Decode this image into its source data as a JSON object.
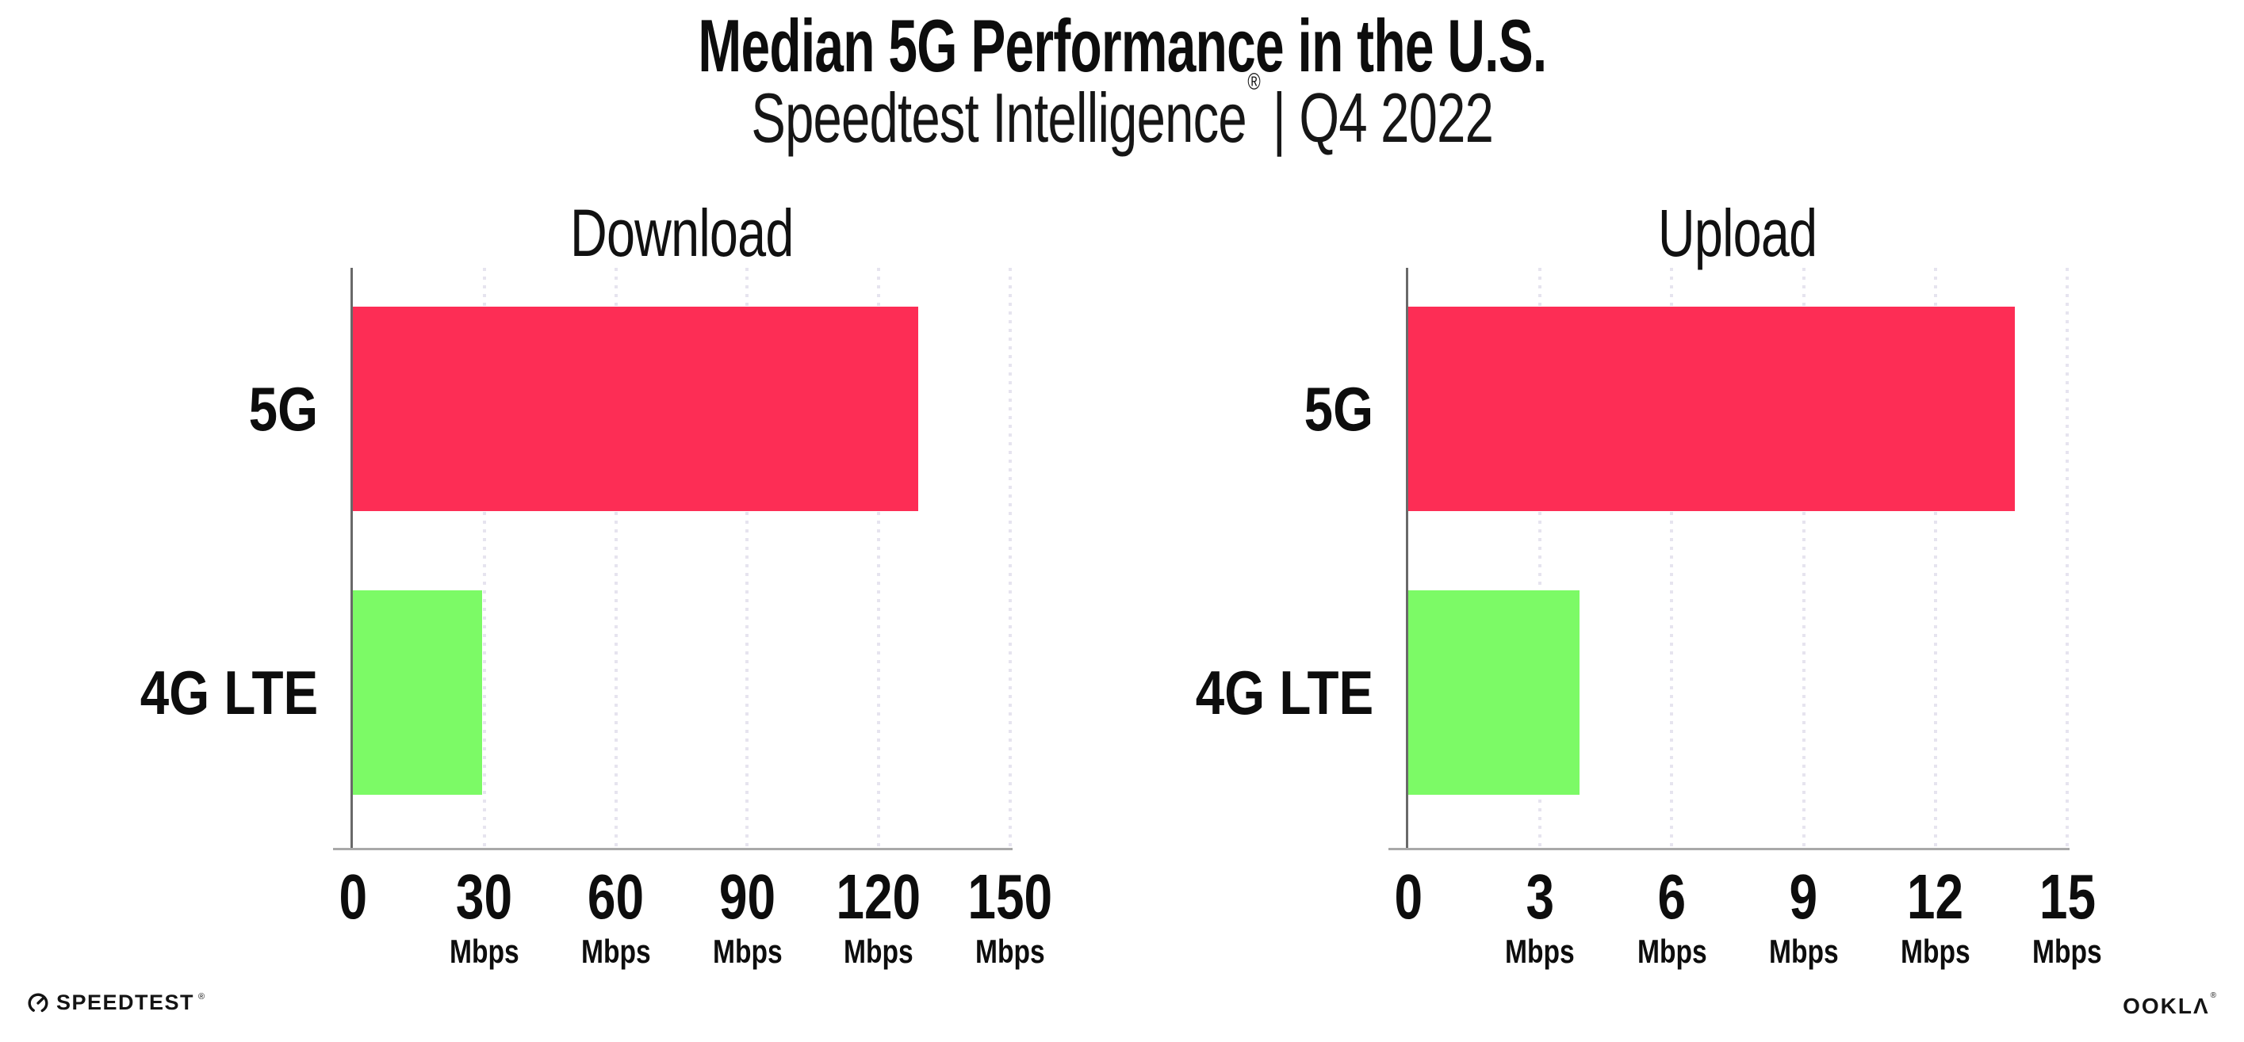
{
  "header": {
    "title": "Median 5G Performance in the U.S.",
    "subtitle_product": "Speedtest Intelligence",
    "subtitle_reg": "®",
    "subtitle_period": "| Q4 2022"
  },
  "chart_data": [
    {
      "type": "bar",
      "orientation": "horizontal",
      "title": "Download",
      "categories": [
        "5G",
        "4G LTE"
      ],
      "values": [
        129,
        29.5
      ],
      "unit": "Mbps",
      "xlim": [
        0,
        150
      ],
      "xticks": [
        0,
        30,
        60,
        90,
        120,
        150
      ],
      "bar_colors": [
        "#FD2D55",
        "#7CFA66"
      ],
      "grid": "vertical-dotted",
      "legend": "none"
    },
    {
      "type": "bar",
      "orientation": "horizontal",
      "title": "Upload",
      "categories": [
        "5G",
        "4G LTE"
      ],
      "values": [
        13.8,
        3.9
      ],
      "unit": "Mbps",
      "xlim": [
        0,
        15
      ],
      "xticks": [
        0,
        3,
        6,
        9,
        12,
        15
      ],
      "bar_colors": [
        "#FD2D55",
        "#7CFA66"
      ],
      "grid": "vertical-dotted",
      "legend": "none"
    }
  ],
  "footer": {
    "speedtest_label": "SPEEDTEST",
    "speedtest_reg": "®",
    "ookla_label": "OOKLΛ",
    "ookla_reg": "®"
  },
  "colors": {
    "bar_5g": "#FD2D55",
    "bar_4g_lte": "#7CFA66",
    "axis_line": "#A9A9A9",
    "spine": "#4F4F4F",
    "gridline": "#E6E4EF",
    "text": "#0D0D0D"
  }
}
